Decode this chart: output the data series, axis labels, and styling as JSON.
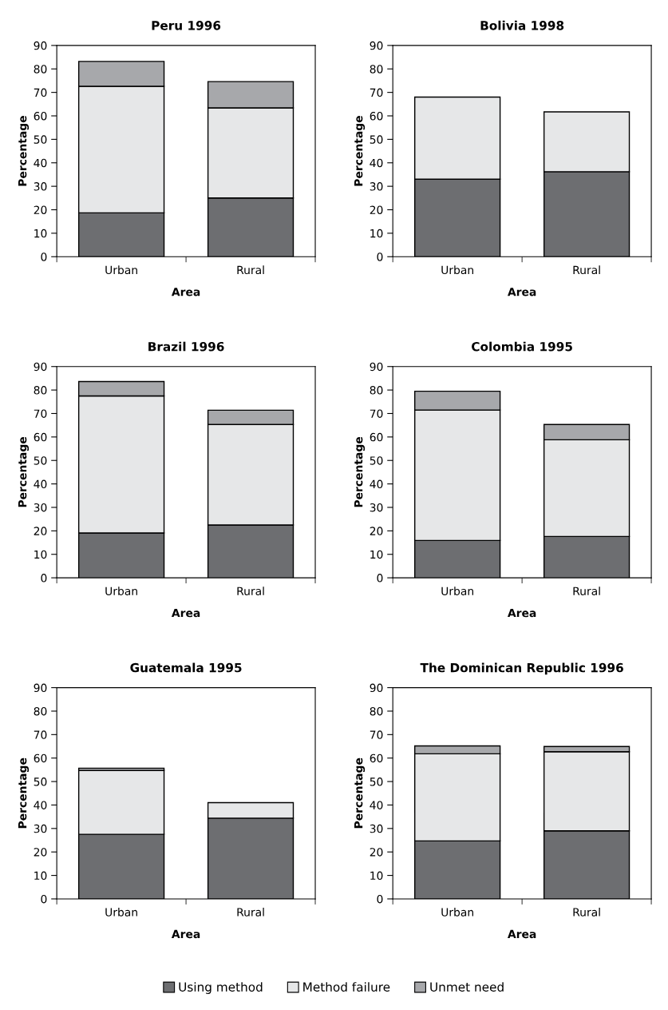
{
  "chart_data": [
    {
      "type": "bar",
      "stacked": true,
      "title": "Peru 1996",
      "xlabel": "Area",
      "ylabel": "Percentage",
      "categories": [
        "Urban",
        "Rural"
      ],
      "ylim": [
        0,
        90
      ],
      "yticks": [
        0,
        10,
        20,
        30,
        40,
        50,
        60,
        70,
        80,
        90
      ],
      "grid": false,
      "legend": "bottom",
      "series": [
        {
          "name": "Using method",
          "color": "#6d6e71",
          "values": [
            18.7,
            25.0
          ]
        },
        {
          "name": "Method failure",
          "color": "#e6e7e8",
          "values": [
            53.9,
            38.4
          ]
        },
        {
          "name": "Unmet need",
          "color": "#a7a8ab",
          "values": [
            10.6,
            11.2
          ]
        }
      ]
    },
    {
      "type": "bar",
      "stacked": true,
      "title": "Bolivia 1998",
      "xlabel": "Area",
      "ylabel": "Percentage",
      "categories": [
        "Urban",
        "Rural"
      ],
      "ylim": [
        0,
        90
      ],
      "yticks": [
        0,
        10,
        20,
        30,
        40,
        50,
        60,
        70,
        80,
        90
      ],
      "grid": false,
      "series": [
        {
          "color": "#6d6e71",
          "values": [
            33.0,
            36.2
          ]
        },
        {
          "color": "#e6e7e8",
          "values": [
            35.0,
            25.5
          ]
        }
      ]
    },
    {
      "type": "bar",
      "stacked": true,
      "title": "Brazil 1996",
      "xlabel": "Area",
      "ylabel": "Percentage",
      "categories": [
        "Urban",
        "Rural"
      ],
      "ylim": [
        0,
        90
      ],
      "yticks": [
        0,
        10,
        20,
        30,
        40,
        50,
        60,
        70,
        80,
        90
      ],
      "grid": false,
      "series": [
        {
          "color": "#6d6e71",
          "values": [
            19.1,
            22.5
          ]
        },
        {
          "color": "#e6e7e8",
          "values": [
            58.4,
            42.8
          ]
        },
        {
          "color": "#a7a8ab",
          "values": [
            6.1,
            6.1
          ]
        }
      ]
    },
    {
      "type": "bar",
      "stacked": true,
      "title": "Colombia 1995",
      "xlabel": "Area",
      "ylabel": "Percentage",
      "categories": [
        "Urban",
        "Rural"
      ],
      "ylim": [
        0,
        90
      ],
      "yticks": [
        0,
        10,
        20,
        30,
        40,
        50,
        60,
        70,
        80,
        90
      ],
      "grid": false,
      "series": [
        {
          "color": "#6d6e71",
          "values": [
            15.9,
            17.6
          ]
        },
        {
          "color": "#e6e7e8",
          "values": [
            55.6,
            41.2
          ]
        },
        {
          "color": "#a7a8ab",
          "values": [
            8.0,
            6.5
          ]
        }
      ]
    },
    {
      "type": "bar",
      "stacked": true,
      "title": "Guatemala 1995",
      "xlabel": "Area",
      "ylabel": "Percentage",
      "categories": [
        "Urban",
        "Rural"
      ],
      "ylim": [
        0,
        90
      ],
      "yticks": [
        0,
        10,
        20,
        30,
        40,
        50,
        60,
        70,
        80,
        90
      ],
      "grid": false,
      "series": [
        {
          "color": "#6d6e71",
          "values": [
            27.5,
            34.4
          ]
        },
        {
          "color": "#e6e7e8",
          "values": [
            27.2,
            6.6
          ]
        },
        {
          "color": "#a7a8ab",
          "values": [
            1.0,
            null
          ]
        }
      ]
    },
    {
      "type": "bar",
      "stacked": true,
      "title": "The Dominican Republic 1996",
      "xlabel": "Area",
      "ylabel": "Percentage",
      "categories": [
        "Urban",
        "Rural"
      ],
      "ylim": [
        0,
        90
      ],
      "yticks": [
        0,
        10,
        20,
        30,
        40,
        50,
        60,
        70,
        80,
        90
      ],
      "grid": false,
      "series": [
        {
          "color": "#6d6e71",
          "values": [
            24.7,
            29.0
          ]
        },
        {
          "color": "#e6e7e8",
          "values": [
            37.1,
            33.7
          ]
        },
        {
          "color": "#a7a8ab",
          "values": [
            3.4,
            2.2
          ]
        }
      ]
    }
  ]
}
